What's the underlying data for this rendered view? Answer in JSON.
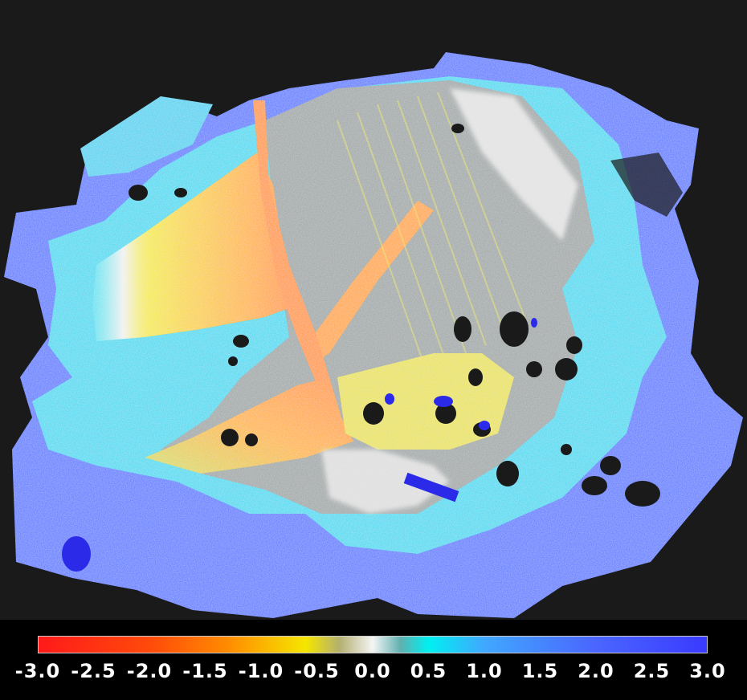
{
  "legend": {
    "ticks": [
      "-3.0",
      "-2.5",
      "-2.0",
      "-1.5",
      "-1.0",
      "-0.5",
      "0.0",
      "0.5",
      "1.0",
      "1.5",
      "2.0",
      "2.5",
      "3.0"
    ],
    "range": [
      -3.0,
      3.0
    ],
    "colormap": [
      {
        "value": -3.0,
        "color": "#ff1a1a"
      },
      {
        "value": -2.0,
        "color": "#ff4a0a"
      },
      {
        "value": -1.3,
        "color": "#ff8c00"
      },
      {
        "value": -0.6,
        "color": "#f5e600"
      },
      {
        "value": -0.3,
        "color": "#b4b070"
      },
      {
        "value": 0.0,
        "color": "#f4f4f4"
      },
      {
        "value": 0.25,
        "color": "#60b0b0"
      },
      {
        "value": 0.5,
        "color": "#00f0f0"
      },
      {
        "value": 1.0,
        "color": "#40a8ff"
      },
      {
        "value": 2.0,
        "color": "#4a66ff"
      },
      {
        "value": 3.0,
        "color": "#3a3aff"
      }
    ]
  },
  "colors": {
    "background": "#1a1a1a",
    "legend_background": "#000000",
    "tick_text": "#ffffff"
  }
}
